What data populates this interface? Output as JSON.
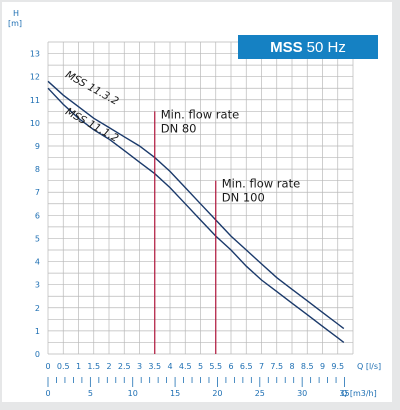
{
  "chart_data": {
    "type": "line",
    "title": "MSS 50 Hz",
    "title_bold": "MSS",
    "title_rest": "50 Hz",
    "ylabel": "H",
    "yunit": "[m]",
    "xlabel_ls": "Q [l/s]",
    "xlabel_m3h": "Q [m3/h]",
    "xlim": [
      0,
      10
    ],
    "ylim": [
      0,
      13.5
    ],
    "y_ticks": [
      "0",
      "1",
      "2",
      "3",
      "4",
      "5",
      "6",
      "7",
      "8",
      "9",
      "10",
      "11",
      "12",
      "13"
    ],
    "x_ticks_ls": [
      "0",
      "0.5",
      "1",
      "1.5",
      "2",
      "2.5",
      "3",
      "3.5",
      "4",
      "4.5",
      "5",
      "5.5",
      "6",
      "6.5",
      "7",
      "7.5",
      "8",
      "8.5",
      "9",
      "9.5"
    ],
    "x_ticks_m3h": [
      "0",
      "5",
      "10",
      "15",
      "20",
      "25",
      "30",
      "35"
    ],
    "grid": true,
    "series": [
      {
        "name": "MSS 11.3.2",
        "x": [
          0,
          0.5,
          1,
          1.5,
          2,
          2.5,
          3,
          3.5,
          4,
          4.5,
          5,
          5.5,
          6,
          6.5,
          7,
          7.5,
          8,
          8.5,
          9,
          9.5,
          9.7
        ],
        "y": [
          11.8,
          11.2,
          10.7,
          10.2,
          9.8,
          9.4,
          9.0,
          8.5,
          7.9,
          7.2,
          6.5,
          5.8,
          5.1,
          4.5,
          3.9,
          3.3,
          2.8,
          2.3,
          1.8,
          1.3,
          1.1
        ]
      },
      {
        "name": "MSS 11.1.2",
        "x": [
          0,
          0.5,
          1,
          1.5,
          2,
          2.5,
          3,
          3.5,
          4,
          4.5,
          5,
          5.5,
          6,
          6.5,
          7,
          7.5,
          8,
          8.5,
          9,
          9.5,
          9.7
        ],
        "y": [
          11.5,
          10.8,
          10.2,
          9.7,
          9.3,
          8.8,
          8.3,
          7.8,
          7.2,
          6.5,
          5.8,
          5.1,
          4.5,
          3.8,
          3.2,
          2.7,
          2.2,
          1.7,
          1.2,
          0.7,
          0.5
        ]
      }
    ],
    "annotations": [
      {
        "x": 3.5,
        "y_top": 10.5,
        "lines": [
          "Min. flow rate",
          "DN 80"
        ]
      },
      {
        "x": 5.5,
        "y_top": 7.5,
        "lines": [
          "Min. flow rate",
          "DN 100"
        ]
      }
    ],
    "colors": {
      "curve": "#1b3a6b",
      "marker": "#b0163c",
      "axis_text": "#1e6fb3",
      "title_bg": "#1581c3",
      "grid": "#b9b9b9"
    }
  }
}
